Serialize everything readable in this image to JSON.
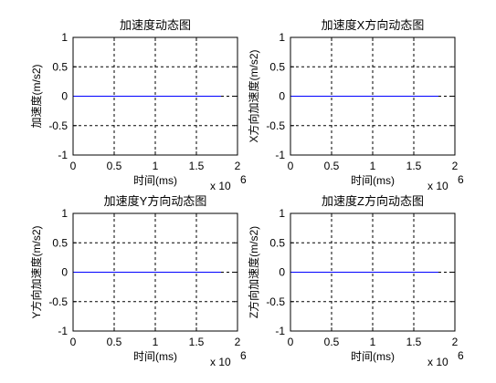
{
  "chart_data": [
    {
      "type": "line",
      "title": "加速度动态图",
      "xlabel": "时间(ms)",
      "ylabel": "加速度(m/s2)",
      "x_multiplier_base": "x 10",
      "x_multiplier_exp": "6",
      "xlim": [
        0,
        2
      ],
      "ylim": [
        -1,
        1
      ],
      "xticks": [
        "0",
        "0.5",
        "1",
        "1.5",
        "2"
      ],
      "yticks": [
        "1",
        "0.5",
        "0",
        "-0.5",
        "-1"
      ],
      "grid": true,
      "series": [
        {
          "x": [
            0,
            1.8
          ],
          "y": [
            0,
            0
          ],
          "color": "#0000ff"
        }
      ]
    },
    {
      "type": "line",
      "title": "加速度X方向动态图",
      "xlabel": "时间(ms)",
      "ylabel": "X方向加速度(m/s2)",
      "x_multiplier_base": "x 10",
      "x_multiplier_exp": "6",
      "xlim": [
        0,
        2
      ],
      "ylim": [
        -1,
        1
      ],
      "xticks": [
        "0",
        "0.5",
        "1",
        "1.5",
        "2"
      ],
      "yticks": [
        "1",
        "0.5",
        "0",
        "-0.5",
        "-1"
      ],
      "grid": true,
      "series": [
        {
          "x": [
            0,
            1.8
          ],
          "y": [
            0,
            0
          ],
          "color": "#0000ff"
        }
      ]
    },
    {
      "type": "line",
      "title": "加速度Y方向动态图",
      "xlabel": "时间(ms)",
      "ylabel": "Y方向加速度(m/s2)",
      "x_multiplier_base": "x 10",
      "x_multiplier_exp": "6",
      "xlim": [
        0,
        2
      ],
      "ylim": [
        -1,
        1
      ],
      "xticks": [
        "0",
        "0.5",
        "1",
        "1.5",
        "2"
      ],
      "yticks": [
        "1",
        "0.5",
        "0",
        "-0.5",
        "-1"
      ],
      "grid": true,
      "series": [
        {
          "x": [
            0,
            1.8
          ],
          "y": [
            0,
            0
          ],
          "color": "#0000ff"
        }
      ]
    },
    {
      "type": "line",
      "title": "加速度Z方向动态图",
      "xlabel": "时间(ms)",
      "ylabel": "Z方向加速度(m/s2)",
      "x_multiplier_base": "x 10",
      "x_multiplier_exp": "6",
      "xlim": [
        0,
        2
      ],
      "ylim": [
        -1,
        1
      ],
      "xticks": [
        "0",
        "0.5",
        "1",
        "1.5",
        "2"
      ],
      "yticks": [
        "1",
        "0.5",
        "0",
        "-0.5",
        "-1"
      ],
      "grid": true,
      "series": [
        {
          "x": [
            0,
            1.8
          ],
          "y": [
            0,
            0
          ],
          "color": "#0000ff"
        }
      ]
    }
  ]
}
